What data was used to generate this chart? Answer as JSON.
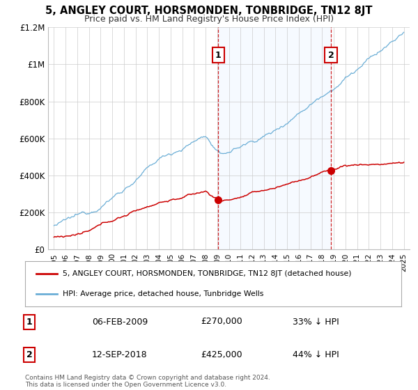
{
  "title": "5, ANGLEY COURT, HORSMONDEN, TONBRIDGE, TN12 8JT",
  "subtitle": "Price paid vs. HM Land Registry's House Price Index (HPI)",
  "sale1_date": "06-FEB-2009",
  "sale1_price": 270000,
  "sale1_label": "33% ↓ HPI",
  "sale2_date": "12-SEP-2018",
  "sale2_price": 425000,
  "sale2_label": "44% ↓ HPI",
  "legend_line1": "5, ANGLEY COURT, HORSMONDEN, TONBRIDGE, TN12 8JT (detached house)",
  "legend_line2": "HPI: Average price, detached house, Tunbridge Wells",
  "footer": "Contains HM Land Registry data © Crown copyright and database right 2024.\nThis data is licensed under the Open Government Licence v3.0.",
  "sale1_x": 2009.1,
  "sale2_x": 2018.75,
  "hpi_color": "#6baed6",
  "price_color": "#cc0000",
  "vline_color": "#cc0000",
  "background_color": "#ffffff",
  "grid_color": "#cccccc",
  "ylim": [
    0,
    1200000
  ],
  "xlim": [
    1994.5,
    2025.5
  ],
  "span_color": "#ddeeff"
}
